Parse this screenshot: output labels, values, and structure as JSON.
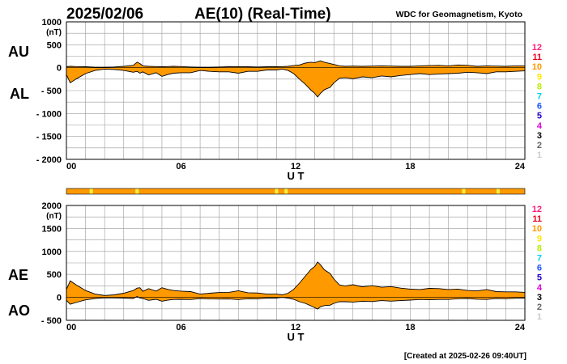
{
  "header": {
    "date": "2025/02/06",
    "title": "AE(10) (Real-Time)",
    "source": "WDC for Geomagnetism, Kyoto"
  },
  "footer": {
    "created": "[Created at 2025-02-26 09:40UT]"
  },
  "colors": {
    "fill": "#ff9900",
    "fill_low": "#ffee44",
    "stations_bar": "#ff9900",
    "grid": "#9a9a9a"
  },
  "station_scale": {
    "labels": [
      "12",
      "11",
      "10",
      "9",
      "8",
      "7",
      "6",
      "5",
      "4",
      "3",
      "2",
      "1"
    ],
    "colors": [
      "#ff1c7a",
      "#e8001c",
      "#ff9900",
      "#ffe800",
      "#b8ee00",
      "#00d0ee",
      "#1a55ff",
      "#2200cc",
      "#dd00dd",
      "#000000",
      "#666666",
      "#cccccc"
    ]
  },
  "chart_data": [
    {
      "id": "au-al",
      "type": "area",
      "side_labels": {
        "upper": "AU",
        "lower": "AL"
      },
      "ylabel": "(nT)",
      "xlabel": "U T",
      "ylim": [
        -2000,
        1000
      ],
      "yticks": [
        1000,
        500,
        0,
        -500,
        -1000,
        -1500,
        -2000
      ],
      "ytick_labels": [
        "1000",
        "500",
        "0",
        "- 500",
        "- 1000",
        "- 1500",
        "- 2000"
      ],
      "xlim": [
        0,
        24
      ],
      "xticks": [
        0,
        6,
        12,
        18,
        24
      ],
      "xtick_labels": [
        "00",
        "06",
        "12",
        "18",
        "24"
      ],
      "grid": true,
      "x": [
        0,
        0.2,
        0.5,
        1,
        1.5,
        2,
        2.5,
        3,
        3.5,
        3.7,
        3.85,
        4,
        4.3,
        4.7,
        5,
        5.3,
        5.6,
        6,
        6.5,
        7,
        7.5,
        8,
        8.5,
        9,
        9.5,
        10,
        10.5,
        11,
        11.3,
        11.6,
        11.9,
        12.2,
        12.5,
        12.8,
        13,
        13.15,
        13.3,
        13.5,
        13.8,
        14,
        14.3,
        14.6,
        15,
        15.5,
        16,
        16.5,
        17,
        17.5,
        18,
        18.5,
        19,
        19.5,
        20,
        20.5,
        21,
        21.5,
        22,
        22.5,
        23,
        23.5,
        24
      ],
      "series": [
        {
          "role": "upper",
          "values": [
            20,
            30,
            25,
            20,
            10,
            10,
            15,
            30,
            50,
            120,
            90,
            40,
            30,
            25,
            20,
            25,
            30,
            25,
            15,
            10,
            10,
            15,
            20,
            25,
            20,
            15,
            20,
            20,
            25,
            30,
            45,
            60,
            100,
            120,
            110,
            130,
            150,
            120,
            90,
            70,
            40,
            30,
            35,
            30,
            35,
            40,
            35,
            30,
            30,
            40,
            45,
            50,
            40,
            60,
            50,
            30,
            40,
            35,
            30,
            40,
            40
          ]
        },
        {
          "role": "lower",
          "values": [
            -150,
            -330,
            -250,
            -130,
            -60,
            -30,
            -40,
            -60,
            -100,
            -80,
            -120,
            -90,
            -160,
            -110,
            -190,
            -150,
            -120,
            -110,
            -110,
            -60,
            -80,
            -90,
            -90,
            -120,
            -80,
            -80,
            -50,
            -50,
            -30,
            -60,
            -130,
            -250,
            -360,
            -490,
            -560,
            -640,
            -560,
            -480,
            -430,
            -330,
            -230,
            -220,
            -240,
            -200,
            -220,
            -180,
            -200,
            -170,
            -150,
            -130,
            -150,
            -140,
            -130,
            -120,
            -100,
            -110,
            -130,
            -90,
            -90,
            -80,
            -70
          ]
        }
      ]
    },
    {
      "id": "ae-ao",
      "type": "area",
      "side_labels": {
        "upper": "AE",
        "lower": "AO"
      },
      "ylabel": "(nT)",
      "xlabel": "U T",
      "ylim": [
        -500,
        2000
      ],
      "yticks": [
        2000,
        1500,
        1000,
        500,
        0,
        -500
      ],
      "ytick_labels": [
        "2000",
        "1500",
        "1000",
        "500",
        "0",
        "- 500"
      ],
      "xlim": [
        0,
        24
      ],
      "xticks": [
        0,
        6,
        12,
        18,
        24
      ],
      "xtick_labels": [
        "00",
        "06",
        "12",
        "18",
        "24"
      ],
      "grid": true,
      "x": [
        0,
        0.2,
        0.5,
        1,
        1.5,
        2,
        2.5,
        3,
        3.5,
        3.7,
        3.85,
        4,
        4.3,
        4.7,
        5,
        5.3,
        5.6,
        6,
        6.5,
        7,
        7.5,
        8,
        8.5,
        9,
        9.5,
        10,
        10.5,
        11,
        11.3,
        11.6,
        11.9,
        12.2,
        12.5,
        12.8,
        13,
        13.15,
        13.3,
        13.5,
        13.8,
        14,
        14.3,
        14.6,
        15,
        15.5,
        16,
        16.5,
        17,
        17.5,
        18,
        18.5,
        19,
        19.5,
        20,
        20.5,
        21,
        21.5,
        22,
        22.5,
        23,
        23.5,
        24
      ],
      "series": [
        {
          "role": "upper",
          "values": [
            170,
            360,
            275,
            150,
            70,
            40,
            55,
            90,
            150,
            200,
            210,
            130,
            190,
            135,
            210,
            175,
            150,
            135,
            125,
            70,
            90,
            105,
            110,
            145,
            100,
            95,
            70,
            70,
            55,
            90,
            175,
            310,
            460,
            610,
            670,
            770,
            710,
            600,
            520,
            400,
            270,
            250,
            275,
            230,
            255,
            220,
            235,
            200,
            180,
            170,
            195,
            190,
            170,
            180,
            150,
            140,
            170,
            125,
            120,
            120,
            110
          ]
        },
        {
          "role": "lower",
          "values": [
            -65,
            -150,
            -112,
            -55,
            -25,
            -10,
            -12,
            -15,
            -25,
            20,
            -15,
            -25,
            -65,
            -42,
            -85,
            -62,
            -45,
            -42,
            -47,
            -25,
            -35,
            -37,
            -35,
            -47,
            -30,
            -32,
            -15,
            -15,
            -2,
            -15,
            -42,
            -95,
            -130,
            -185,
            -225,
            -255,
            -205,
            -180,
            -170,
            -130,
            -95,
            -95,
            -102,
            -85,
            -92,
            -70,
            -82,
            -70,
            -60,
            -45,
            -52,
            -45,
            -45,
            -30,
            -25,
            -40,
            -45,
            -27,
            -30,
            -20,
            -15
          ]
        }
      ]
    }
  ],
  "station_strip": {
    "base_color": "#ff9900",
    "marker_color": "#ffee44",
    "markers_ut": [
      1.3,
      3.7,
      11,
      11.5,
      20.8,
      22.6
    ]
  }
}
